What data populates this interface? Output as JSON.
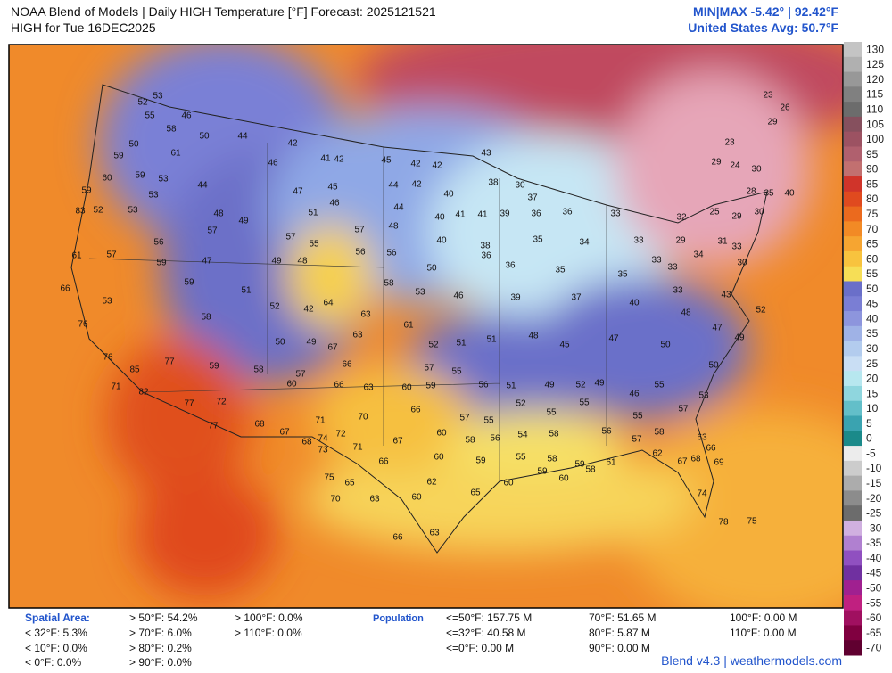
{
  "header": {
    "title": "NOAA Blend of Models | Daily HIGH Temperature [°F] Forecast: 2025121521",
    "subtitle": "HIGH for Tue 16DEC2025",
    "minmax": "MIN|MAX -5.42°  |  92.42°F",
    "average": "United States Avg: 50.7°F"
  },
  "scale": {
    "labels": [
      130,
      125,
      120,
      115,
      110,
      105,
      100,
      95,
      90,
      85,
      80,
      75,
      70,
      65,
      60,
      55,
      50,
      45,
      40,
      35,
      30,
      25,
      20,
      15,
      10,
      5,
      0,
      -5,
      -10,
      -15,
      -20,
      -25,
      -30,
      -35,
      -40,
      -45,
      -50,
      -55,
      -60,
      -65,
      -70
    ],
    "colors": [
      "#c4c4c4",
      "#b0b0b0",
      "#989898",
      "#808080",
      "#6c6c6c",
      "#86505e",
      "#9c5262",
      "#b0606e",
      "#c27070",
      "#d0342a",
      "#e04a1f",
      "#eb6a1e",
      "#f28a25",
      "#f6a531",
      "#f8c33e",
      "#f6de56",
      "#6a6fc9",
      "#7a7ed4",
      "#8d95dd",
      "#9fb2e6",
      "#b3ccee",
      "#c9def4",
      "#b7e7ef",
      "#8fd6de",
      "#63bfc9",
      "#3aa3b0",
      "#1b8a8a",
      "#ececec",
      "#cccccc",
      "#acacac",
      "#8c8c8c",
      "#6c6c6c",
      "#d0b0e0",
      "#b080d0",
      "#9050c0",
      "#7030a0",
      "#a02090",
      "#c02080",
      "#a01060",
      "#800040",
      "#600030"
    ]
  },
  "map": {
    "temps": [
      53,
      52,
      55,
      46,
      58,
      50,
      44,
      42,
      41,
      42,
      45,
      42,
      42,
      43,
      50,
      59,
      61,
      59,
      60,
      53,
      59,
      53,
      44,
      46,
      47,
      45,
      44,
      42,
      40,
      41,
      38,
      30,
      37,
      83,
      52,
      53,
      48,
      49,
      51,
      46,
      44,
      40,
      41,
      39,
      36,
      36,
      33,
      56,
      57,
      57,
      55,
      57,
      48,
      40,
      38,
      35,
      34,
      33,
      29,
      31,
      61,
      57,
      59,
      47,
      49,
      48,
      56,
      56,
      50,
      36,
      36,
      35,
      35,
      33,
      33,
      66,
      53,
      59,
      51,
      52,
      42,
      64,
      63,
      58,
      53,
      46,
      39,
      37,
      40,
      48,
      43,
      76,
      58,
      50,
      49,
      67,
      63,
      61,
      52,
      51,
      51,
      48,
      45,
      47,
      50,
      47,
      49,
      76,
      85,
      77,
      59,
      58,
      57,
      66,
      57,
      55,
      56,
      51,
      49,
      52,
      49,
      55,
      50,
      71,
      82,
      77,
      72,
      60,
      66,
      63,
      60,
      59,
      52,
      55,
      55,
      46,
      53,
      77,
      68,
      71,
      70,
      66,
      57,
      55,
      54,
      58,
      56,
      55,
      57,
      67,
      74,
      72,
      71,
      67,
      60,
      58,
      56,
      57,
      58,
      63,
      68,
      73,
      66,
      60,
      59,
      55,
      58,
      59,
      61,
      62,
      67,
      68,
      66,
      69,
      75,
      65,
      62,
      65,
      60,
      59,
      60,
      58,
      74,
      70,
      63,
      60,
      63,
      66,
      78,
      75,
      52,
      23,
      26,
      29,
      23,
      29,
      24,
      30,
      28,
      35,
      40,
      32,
      25,
      29,
      30,
      33,
      34,
      30,
      33
    ]
  },
  "footer": {
    "spatial_title": "Spatial Area:",
    "spatial": [
      "< 32°F: 5.3%",
      "< 10°F: 0.0%",
      "< 0°F: 0.0%",
      "> 50°F: 54.2%",
      "> 70°F: 6.0%",
      "> 80°F: 0.2%",
      "> 90°F: 0.0%",
      "> 100°F: 0.0%",
      "> 110°F: 0.0%"
    ],
    "population_title": "Population",
    "population": [
      "<=50°F: 157.75 M",
      "<=32°F: 40.58 M",
      "<=0°F: 0.00 M",
      "70°F: 51.65 M",
      "80°F: 5.87 M",
      "90°F: 0.00 M",
      "100°F: 0.00 M",
      "110°F: 0.00 M"
    ],
    "credit": "Blend v4.3 | weathermodels.com"
  }
}
